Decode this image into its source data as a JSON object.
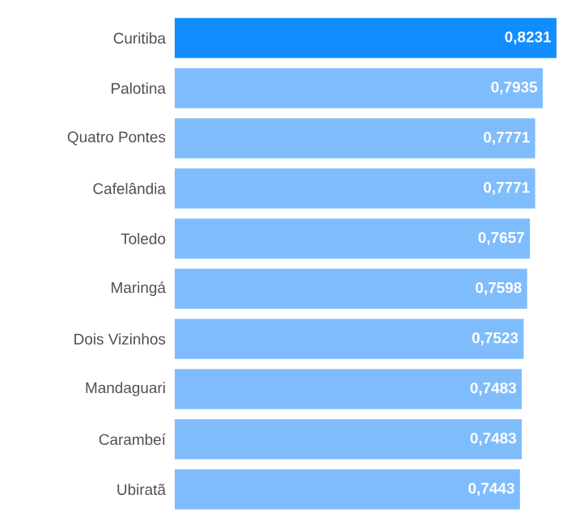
{
  "chart_data": {
    "type": "bar",
    "orientation": "horizontal",
    "categories": [
      "Curitiba",
      "Palotina",
      "Quatro Pontes",
      "Cafelândia",
      "Toledo",
      "Maringá",
      "Dois Vizinhos",
      "Mandaguari",
      "Carambeí",
      "Ubiratã"
    ],
    "values": [
      0.8231,
      0.7935,
      0.7771,
      0.7771,
      0.7657,
      0.7598,
      0.7523,
      0.7483,
      0.7483,
      0.7443
    ],
    "value_labels": [
      "0,8231",
      "0,7935",
      "0,7771",
      "0,7771",
      "0,7657",
      "0,7598",
      "0,7523",
      "0,7483",
      "0,7483",
      "0,7443"
    ],
    "colors": [
      "#118dff",
      "#7fbcfc",
      "#7fbcfc",
      "#7fbcfc",
      "#7fbcfc",
      "#7fbcfc",
      "#7fbcfc",
      "#7fbcfc",
      "#7fbcfc",
      "#7fbcfc"
    ]
  }
}
